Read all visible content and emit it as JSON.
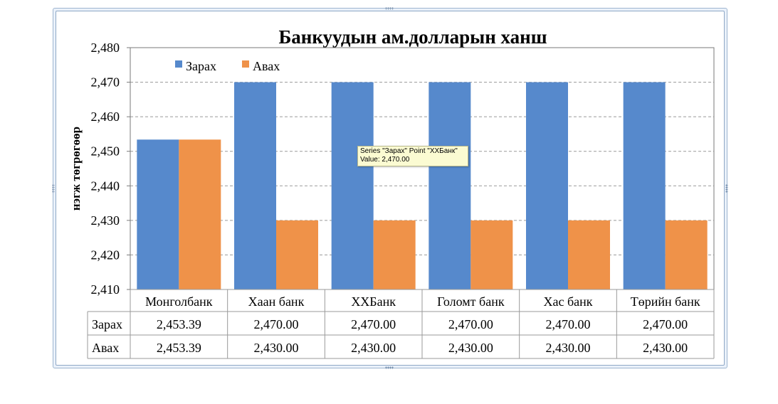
{
  "chart_data": {
    "type": "bar",
    "title": "Банкуудын ам.долларын ханш",
    "xlabel": "",
    "ylabel": "нэгж төгрөгөөр",
    "ylim": [
      2410,
      2480
    ],
    "yticks": [
      2410,
      2420,
      2430,
      2440,
      2450,
      2460,
      2470,
      2480
    ],
    "ytick_labels": [
      "2,410",
      "2,420",
      "2,430",
      "2,440",
      "2,450",
      "2,460",
      "2,470",
      "2,480"
    ],
    "grid": true,
    "legend": "top-left",
    "categories": [
      "Монголбанк",
      "Хаан банк",
      "ХХБанк",
      "Голомт банк",
      "Хас банк",
      "Төрийн банк"
    ],
    "series": [
      {
        "name": "Зарах",
        "color": "#5689cc",
        "values": [
          2453.39,
          2470.0,
          2470.0,
          2470.0,
          2470.0,
          2470.0
        ],
        "table_values": [
          "2,453.39",
          "2,470.00",
          "2,470.00",
          "2,470.00",
          "2,470.00",
          "2,470.00"
        ]
      },
      {
        "name": "Авах",
        "color": "#ef9249",
        "values": [
          2453.39,
          2430.0,
          2430.0,
          2430.0,
          2430.0,
          2430.0
        ],
        "table_values": [
          "2,453.39",
          "2,430.00",
          "2,430.00",
          "2,430.00",
          "2,430.00",
          "2,430.00"
        ]
      }
    ],
    "data_table": true
  },
  "tooltip": {
    "line1": "Series \"Зарах\" Point \"ХХБанк\"",
    "line2": "Value: 2,470.00"
  }
}
